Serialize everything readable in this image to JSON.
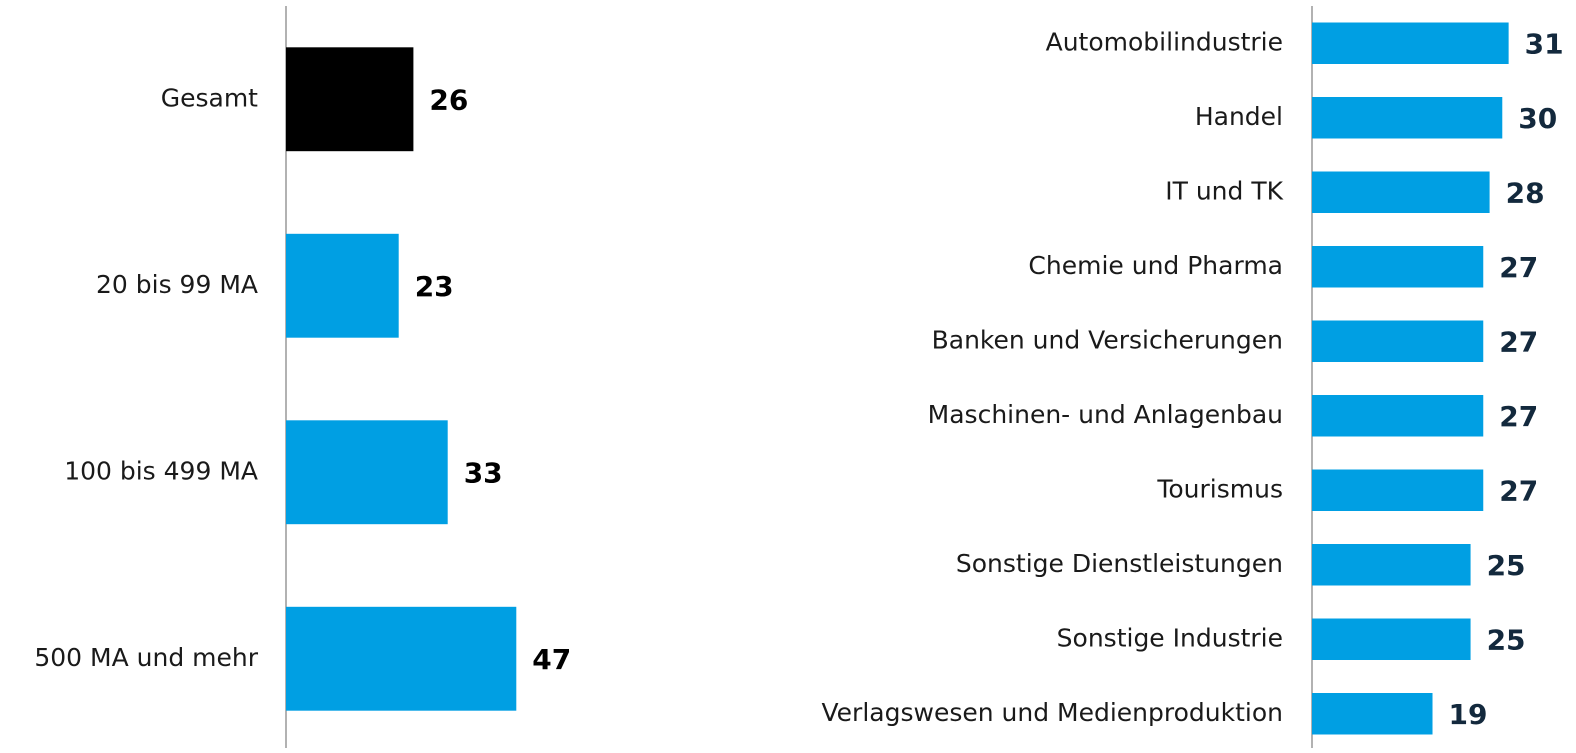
{
  "chart_data": [
    {
      "type": "hbar",
      "categories": [
        "Gesamt",
        "20 bis 99 MA",
        "100 bis 499 MA",
        "500 MA und mehr"
      ],
      "values": [
        26,
        23,
        33,
        47
      ],
      "colors": [
        "#000000",
        "#009fe3",
        "#009fe3",
        "#009fe3"
      ],
      "label_color": "#000000",
      "xlim": [
        0,
        50
      ]
    },
    {
      "type": "hbar",
      "categories": [
        "Automobilindustrie",
        "Handel",
        "IT und TK",
        "Chemie und Pharma",
        "Banken und Versicherungen",
        "Maschinen- und Anlagenbau",
        "Tourismus",
        "Sonstige Dienstleistungen",
        "Sonstige Industrie",
        "Verlagswesen und Medienproduktion"
      ],
      "values": [
        31,
        30,
        28,
        27,
        27,
        27,
        27,
        25,
        25,
        19
      ],
      "color": "#009fe3",
      "label_color": "#13293d",
      "xlim": [
        0,
        35
      ]
    }
  ]
}
